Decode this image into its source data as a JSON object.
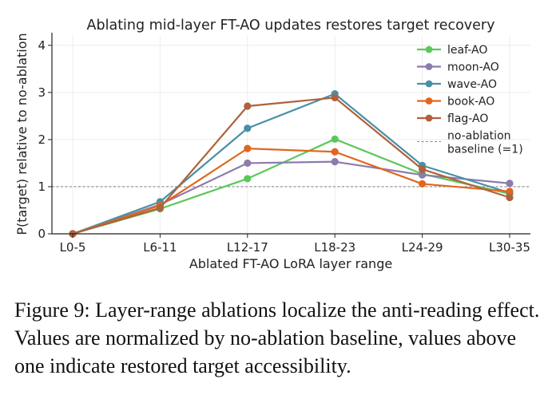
{
  "chart_data": {
    "type": "line",
    "title": "Ablating mid-layer FT-AO updates restores target recovery",
    "xlabel": "Ablated FT-AO LoRA layer range",
    "ylabel": "P(target) relative to no-ablation",
    "categories": [
      "L0-5",
      "L6-11",
      "L12-17",
      "L18-23",
      "L24-29",
      "L30-35"
    ],
    "ylim": [
      0,
      4.2
    ],
    "yticks": [
      "0",
      "1",
      "2",
      "3",
      "4"
    ],
    "grid": true,
    "legend_position": "top-right",
    "baseline": {
      "label": "no-ablation baseline (=1)",
      "label_lines": [
        "no-ablation",
        "baseline (=1)"
      ],
      "value": 1,
      "color": "#8a8a8a"
    },
    "series": [
      {
        "name": "leaf-AO",
        "color": "#5cc85a",
        "values": [
          0.0,
          0.53,
          1.17,
          2.01,
          1.27,
          0.85
        ]
      },
      {
        "name": "moon-AO",
        "color": "#8c7bad",
        "values": [
          0.0,
          0.62,
          1.5,
          1.53,
          1.25,
          1.07
        ]
      },
      {
        "name": "wave-AO",
        "color": "#4a8fa7",
        "values": [
          0.0,
          0.68,
          2.24,
          2.97,
          1.45,
          0.87
        ]
      },
      {
        "name": "book-AO",
        "color": "#e0671d",
        "values": [
          0.0,
          0.6,
          1.81,
          1.74,
          1.06,
          0.9
        ]
      },
      {
        "name": "flag-AO",
        "color": "#b0613c",
        "values": [
          0.0,
          0.55,
          2.71,
          2.89,
          1.37,
          0.77
        ]
      }
    ]
  },
  "caption": "Figure 9: Layer-range ablations localize the anti-reading effect. Values are normalized by no-ablation baseline, values above one indicate restored target accessibility."
}
